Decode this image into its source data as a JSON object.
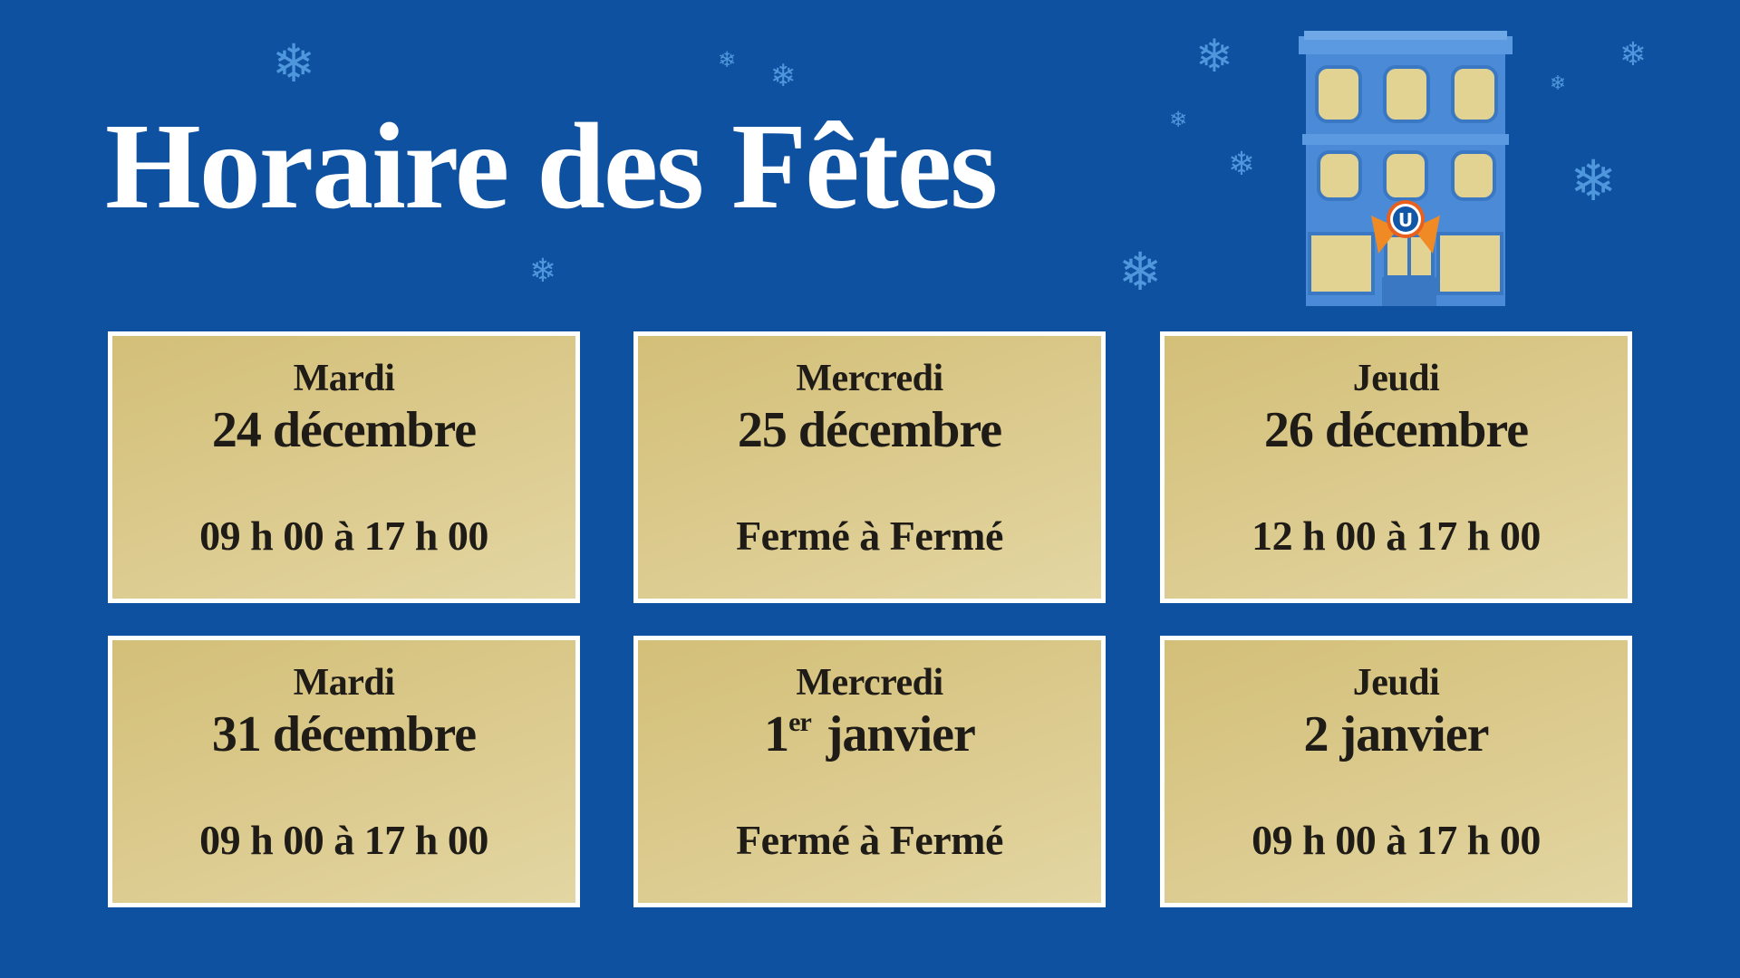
{
  "title": "Horaire des Fêtes",
  "colors": {
    "background": "#0e51a1",
    "card": "#dccb8f",
    "snowflake": "#4f97dc"
  },
  "decor": {
    "snowflake_icon": "❄",
    "building_logo_letter": "U"
  },
  "cards": [
    {
      "day": "Mardi",
      "date": "24 décembre",
      "date_sup": "",
      "hours": "09 h 00 à 17 h 00"
    },
    {
      "day": "Mercredi",
      "date": "25 décembre",
      "date_sup": "",
      "hours": "Fermé à Fermé"
    },
    {
      "day": "Jeudi",
      "date": "26 décembre",
      "date_sup": "",
      "hours": "12 h 00 à 17 h 00"
    },
    {
      "day": "Mardi",
      "date": "31 décembre",
      "date_sup": "",
      "hours": "09 h 00 à 17 h 00"
    },
    {
      "day": "Mercredi",
      "date_num": "1",
      "date_sup": "er",
      "date": " janvier",
      "hours": "Fermé à Fermé"
    },
    {
      "day": "Jeudi",
      "date": "2 janvier",
      "date_sup": "",
      "hours": "09 h 00 à 17 h 00"
    }
  ]
}
